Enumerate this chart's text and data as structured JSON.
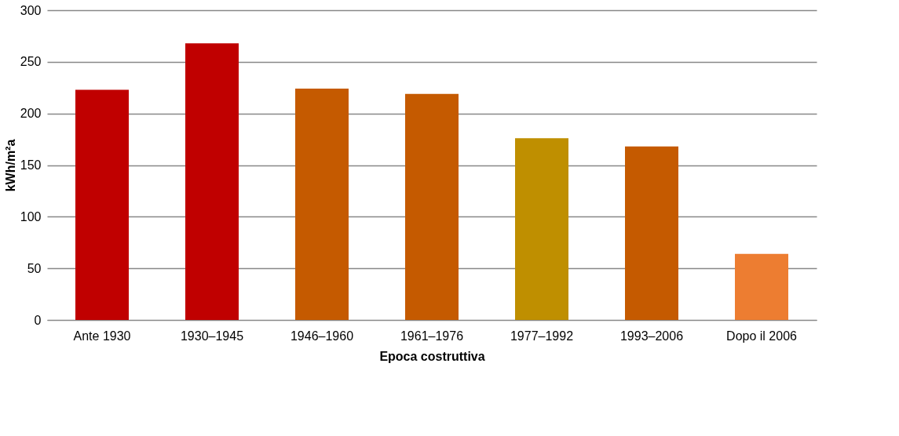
{
  "chart_data": {
    "type": "bar",
    "xlabel": "Epoca costruttiva",
    "ylabel": "kWh/m²a",
    "categories": [
      "Ante 1930",
      "1930–1945",
      "1946–1960",
      "1961–1976",
      "1977–1992",
      "1993–2006",
      "Dopo il 2006"
    ],
    "values": [
      223,
      268,
      224,
      219,
      176,
      168,
      64
    ],
    "colors": [
      "#c00000",
      "#c00000",
      "#c55a00",
      "#c55a00",
      "#bf8f00",
      "#c55a00",
      "#ed7d31"
    ],
    "ylim": [
      0,
      300
    ],
    "yticks": [
      0,
      50,
      100,
      150,
      200,
      250,
      300
    ],
    "grid": "y"
  }
}
